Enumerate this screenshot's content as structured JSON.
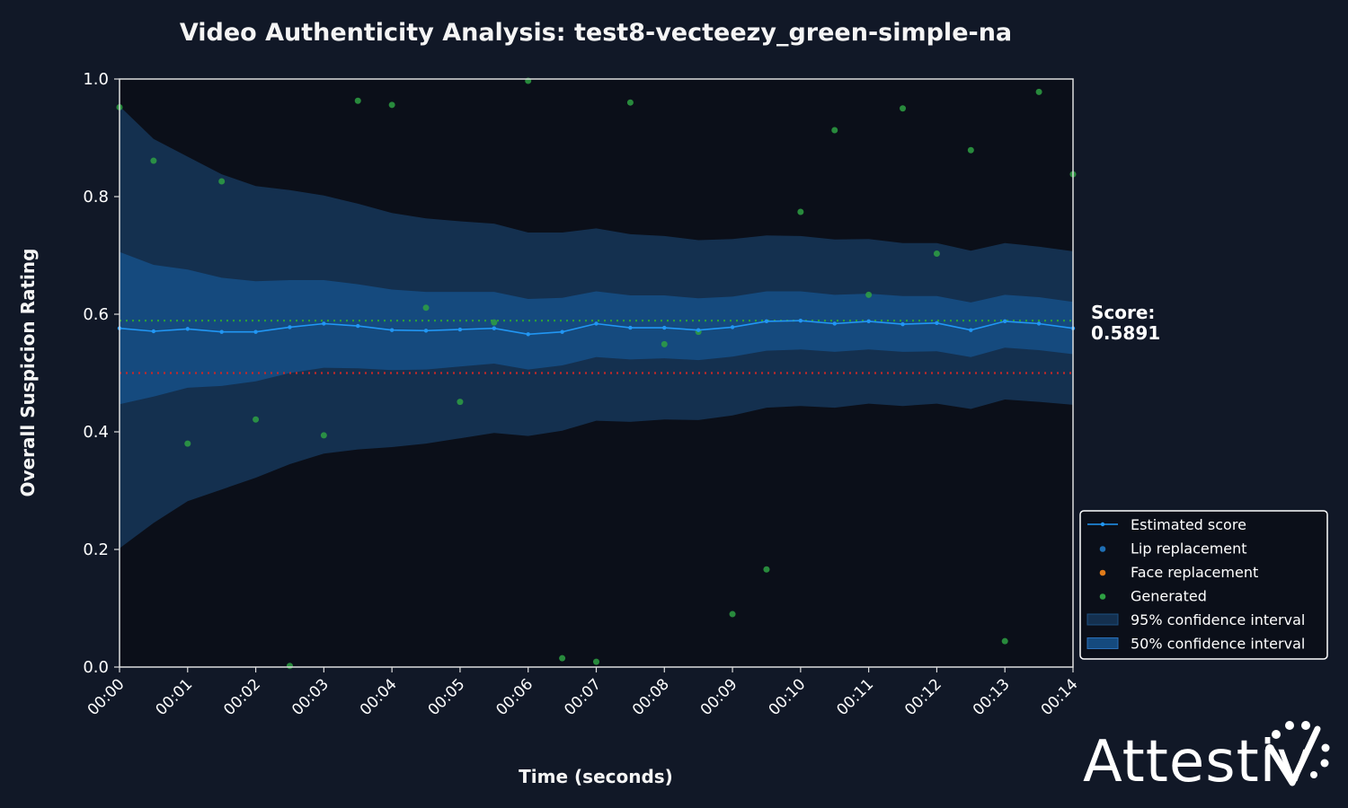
{
  "chart_data": {
    "type": "line",
    "title": "Video Authenticity Analysis: test8-vecteezy_green-simple-na",
    "xlabel": "Time (seconds)",
    "ylabel": "Overall Suspicion Rating",
    "xlim": [
      0,
      14
    ],
    "ylim": [
      0,
      1
    ],
    "x_ticks": [
      {
        "value": 0,
        "label": "00:00"
      },
      {
        "value": 1,
        "label": "00:01"
      },
      {
        "value": 2,
        "label": "00:02"
      },
      {
        "value": 3,
        "label": "00:03"
      },
      {
        "value": 4,
        "label": "00:04"
      },
      {
        "value": 5,
        "label": "00:05"
      },
      {
        "value": 6,
        "label": "00:06"
      },
      {
        "value": 7,
        "label": "00:07"
      },
      {
        "value": 8,
        "label": "00:08"
      },
      {
        "value": 9,
        "label": "00:09"
      },
      {
        "value": 10,
        "label": "00:10"
      },
      {
        "value": 11,
        "label": "00:11"
      },
      {
        "value": 12,
        "label": "00:12"
      },
      {
        "value": 13,
        "label": "00:13"
      },
      {
        "value": 14,
        "label": "00:14"
      }
    ],
    "y_ticks": [
      {
        "value": 0,
        "label": "0.0"
      },
      {
        "value": 0.2,
        "label": "0.2"
      },
      {
        "value": 0.4,
        "label": "0.4"
      },
      {
        "value": 0.6,
        "label": "0.6"
      },
      {
        "value": 0.8,
        "label": "0.8"
      },
      {
        "value": 1.0,
        "label": "1.0"
      }
    ],
    "grid": false,
    "score_label": "Score:",
    "score_value": "0.5891",
    "score_line": 0.5891,
    "threshold_line": 0.5,
    "estimated_score": {
      "name": "Estimated score",
      "x": [
        0,
        0.5,
        1,
        1.5,
        2,
        2.5,
        3,
        3.5,
        4,
        4.5,
        5,
        5.5,
        6,
        6.5,
        7,
        7.5,
        8,
        8.5,
        9,
        9.5,
        10,
        10.5,
        11,
        11.5,
        12,
        12.5,
        13,
        13.5,
        14
      ],
      "y": [
        0.576,
        0.571,
        0.575,
        0.57,
        0.57,
        0.578,
        0.584,
        0.58,
        0.573,
        0.572,
        0.574,
        0.576,
        0.566,
        0.57,
        0.584,
        0.577,
        0.577,
        0.573,
        0.578,
        0.588,
        0.589,
        0.584,
        0.588,
        0.583,
        0.585,
        0.573,
        0.588,
        0.584,
        0.576
      ]
    },
    "ci95": {
      "name": "95% confidence interval",
      "lower": [
        0.202,
        0.245,
        0.282,
        0.302,
        0.322,
        0.345,
        0.363,
        0.37,
        0.374,
        0.38,
        0.389,
        0.398,
        0.393,
        0.402,
        0.419,
        0.417,
        0.421,
        0.42,
        0.428,
        0.441,
        0.444,
        0.441,
        0.448,
        0.444,
        0.448,
        0.439,
        0.455,
        0.451,
        0.446
      ],
      "upper": [
        0.954,
        0.898,
        0.868,
        0.838,
        0.818,
        0.811,
        0.802,
        0.788,
        0.772,
        0.763,
        0.758,
        0.754,
        0.739,
        0.739,
        0.746,
        0.736,
        0.733,
        0.726,
        0.728,
        0.734,
        0.733,
        0.727,
        0.728,
        0.721,
        0.721,
        0.708,
        0.721,
        0.715,
        0.707
      ]
    },
    "ci50": {
      "name": "50% confidence interval",
      "lower": [
        0.447,
        0.46,
        0.475,
        0.478,
        0.486,
        0.5,
        0.509,
        0.508,
        0.505,
        0.506,
        0.511,
        0.516,
        0.506,
        0.513,
        0.527,
        0.523,
        0.525,
        0.522,
        0.528,
        0.538,
        0.54,
        0.536,
        0.54,
        0.536,
        0.537,
        0.527,
        0.543,
        0.539,
        0.532
      ],
      "upper": [
        0.706,
        0.684,
        0.676,
        0.662,
        0.656,
        0.658,
        0.658,
        0.651,
        0.642,
        0.638,
        0.638,
        0.638,
        0.626,
        0.628,
        0.639,
        0.632,
        0.632,
        0.627,
        0.63,
        0.639,
        0.639,
        0.633,
        0.635,
        0.631,
        0.631,
        0.62,
        0.633,
        0.629,
        0.621
      ]
    },
    "lip_replacement": {
      "name": "Lip replacement",
      "x": [],
      "y": []
    },
    "face_replacement": {
      "name": "Face replacement",
      "x": [],
      "y": []
    },
    "generated": {
      "name": "Generated",
      "x": [
        0,
        0.5,
        1,
        1.5,
        2,
        2.5,
        3,
        3.5,
        4,
        4.5,
        5,
        5.5,
        6,
        6.5,
        7,
        7.5,
        8,
        8.5,
        9,
        9.5,
        10,
        10.5,
        11,
        11.5,
        12,
        12.5,
        13,
        13.5,
        14
      ],
      "y": [
        0.952,
        0.861,
        0.38,
        0.826,
        0.421,
        0.002,
        0.394,
        0.963,
        0.956,
        0.611,
        0.451,
        0.586,
        0.997,
        0.015,
        0.009,
        0.96,
        0.549,
        0.57,
        0.09,
        0.166,
        0.774,
        0.913,
        0.633,
        0.95,
        0.703,
        0.879,
        0.044,
        0.978,
        0.838
      ]
    },
    "legend_position": "lower-right-outside",
    "legend": [
      {
        "label": "Estimated score",
        "kind": "line"
      },
      {
        "label": "Lip replacement",
        "kind": "dot"
      },
      {
        "label": "Face replacement",
        "kind": "dot"
      },
      {
        "label": "Generated",
        "kind": "dot"
      },
      {
        "label": "95% confidence interval",
        "kind": "patch95"
      },
      {
        "label": "50% confidence interval",
        "kind": "patch50"
      }
    ],
    "colors": {
      "page_background": "#111827",
      "plot_background": "#0b0f19",
      "estimated": "#2196f3",
      "lip": "#1f6fb4",
      "face": "#e07b1a",
      "generated": "#2ea043",
      "ci95": "#14304f",
      "ci50": "#154a7e",
      "score_line": "#2a9d3a",
      "threshold_line": "#c62828",
      "text": "#ffffff",
      "axis": "#dddddd"
    }
  },
  "brand": {
    "logo_text": "Attestiv",
    "logo_mark": "logo-checkmark-dots"
  }
}
